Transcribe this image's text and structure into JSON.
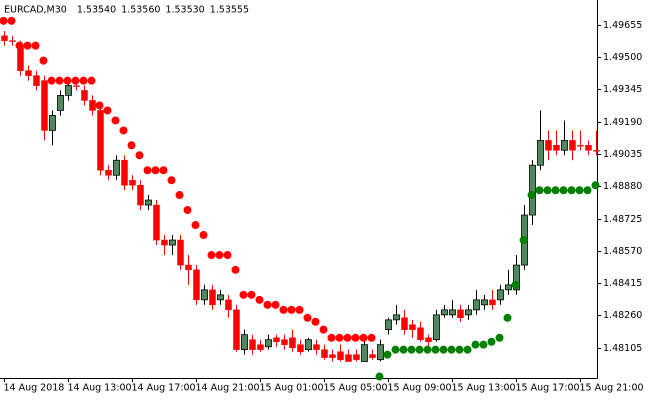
{
  "chart_data": {
    "type": "candlestick",
    "title": "EURCAD,M30",
    "header_quotes": [
      "1.53540",
      "1.53560",
      "1.53530",
      "1.53555"
    ],
    "categories": [
      "14 Aug 2018",
      null,
      null,
      null,
      null,
      null,
      null,
      null,
      "14 Aug 13:00",
      null,
      null,
      null,
      null,
      null,
      null,
      null,
      "14 Aug 17:00",
      null,
      null,
      null,
      null,
      null,
      null,
      null,
      "14 Aug 21:00",
      null,
      null,
      null,
      null,
      null,
      null,
      null,
      "15 Aug 01:00",
      null,
      null,
      null,
      null,
      null,
      null,
      null,
      "15 Aug 05:00",
      null,
      null,
      null,
      null,
      null,
      null,
      null,
      "15 Aug 09:00",
      null,
      null,
      null,
      null,
      null,
      null,
      null,
      "15 Aug 13:00",
      null,
      null,
      null,
      null,
      null,
      null,
      null,
      "15 Aug 17:00",
      null,
      null,
      null,
      null,
      null,
      null,
      null,
      "15 Aug 21:00",
      null,
      null
    ],
    "open": [
      1.49602,
      1.49579,
      1.49555,
      1.49435,
      1.49411,
      1.49387,
      1.49148,
      1.49244,
      1.49316,
      1.49363,
      1.4934,
      1.49292,
      1.49244,
      1.48957,
      1.48933,
      1.49005,
      1.48909,
      1.48885,
      1.4879,
      1.4879,
      1.48622,
      1.48598,
      1.48622,
      1.48502,
      1.48479,
      1.48335,
      1.48383,
      1.48335,
      1.48335,
      1.48287,
      1.48096,
      1.48144,
      1.4812,
      1.4811,
      1.48153,
      1.48144,
      1.48153,
      1.4812,
      1.48096,
      1.4812,
      1.48096,
      1.48072,
      1.48086,
      1.48072,
      1.48072,
      1.48039,
      1.48072,
      1.48048,
      1.48192,
      1.48239,
      1.48249,
      1.48216,
      1.48201,
      1.48153,
      1.48144,
      1.48263,
      1.48263,
      1.48287,
      1.48263,
      1.48287,
      1.48311,
      1.48335,
      1.48335,
      1.48383,
      1.48383,
      1.48502,
      1.48742,
      1.48981,
      1.491,
      1.49077,
      1.49053,
      1.491,
      1.49077,
      1.49077,
      1.49053
    ],
    "high": [
      1.49626,
      1.49602,
      1.49579,
      1.49459,
      1.49435,
      1.49411,
      1.49244,
      1.4934,
      1.49387,
      1.49387,
      1.49363,
      1.49316,
      1.49268,
      1.48981,
      1.49029,
      1.49029,
      1.48933,
      1.48909,
      1.48838,
      1.48814,
      1.48646,
      1.48646,
      1.48646,
      1.4855,
      1.48502,
      1.48407,
      1.48407,
      1.48383,
      1.48359,
      1.48311,
      1.48192,
      1.48168,
      1.48144,
      1.48168,
      1.48168,
      1.48168,
      1.48192,
      1.48144,
      1.48153,
      1.48144,
      1.4812,
      1.48096,
      1.4812,
      1.48096,
      1.48096,
      1.48144,
      1.48096,
      1.48144,
      1.48249,
      1.48311,
      1.48287,
      1.48239,
      1.4823,
      1.48168,
      1.48287,
      1.48311,
      1.48335,
      1.48311,
      1.48311,
      1.48383,
      1.48359,
      1.48383,
      1.48407,
      1.48479,
      1.4855,
      1.4879,
      1.49005,
      1.49244,
      1.49148,
      1.49148,
      1.49196,
      1.49148,
      1.49148,
      1.491,
      1.49148
    ],
    "low": [
      1.49555,
      1.49555,
      1.49411,
      1.49387,
      1.4934,
      1.491,
      1.49077,
      1.4922,
      1.49292,
      1.4934,
      1.49268,
      1.4922,
      1.48933,
      1.48909,
      1.48909,
      1.48861,
      1.48861,
      1.48766,
      1.48766,
      1.48598,
      1.4855,
      1.4855,
      1.48479,
      1.48407,
      1.48311,
      1.48311,
      1.48287,
      1.48311,
      1.48249,
      1.48086,
      1.48072,
      1.48072,
      1.48086,
      1.48096,
      1.4811,
      1.48096,
      1.48086,
      1.48072,
      1.48086,
      1.48072,
      1.48048,
      1.48039,
      1.48039,
      1.48039,
      1.48039,
      1.48039,
      1.48048,
      1.48039,
      1.48168,
      1.48216,
      1.48168,
      1.48153,
      1.48134,
      1.4811,
      1.48134,
      1.48249,
      1.48249,
      1.4823,
      1.48239,
      1.48263,
      1.48287,
      1.48287,
      1.48311,
      1.48359,
      1.48359,
      1.48479,
      1.48694,
      1.48957,
      1.49005,
      1.49029,
      1.49029,
      1.49005,
      1.49053,
      1.49029,
      1.49029
    ],
    "close": [
      1.49579,
      1.49579,
      1.49435,
      1.49411,
      1.49363,
      1.49148,
      1.4922,
      1.49316,
      1.49363,
      1.49363,
      1.49292,
      1.49244,
      1.48957,
      1.48933,
      1.49005,
      1.48885,
      1.48885,
      1.4879,
      1.48814,
      1.48622,
      1.48598,
      1.48622,
      1.48502,
      1.48479,
      1.48335,
      1.48383,
      1.48311,
      1.48359,
      1.48287,
      1.48096,
      1.48168,
      1.48096,
      1.48096,
      1.48144,
      1.48134,
      1.4812,
      1.48105,
      1.48086,
      1.48144,
      1.48096,
      1.48058,
      1.48058,
      1.48048,
      1.48039,
      1.48048,
      1.4812,
      1.48058,
      1.4812,
      1.48239,
      1.48263,
      1.48192,
      1.48192,
      1.48144,
      1.48134,
      1.48263,
      1.48287,
      1.48287,
      1.48249,
      1.48287,
      1.48335,
      1.48335,
      1.48311,
      1.48383,
      1.48407,
      1.48502,
      1.48742,
      1.48981,
      1.491,
      1.49053,
      1.49053,
      1.491,
      1.49053,
      1.49077,
      1.49053,
      1.49053
    ],
    "bull_color": "#4f8a5c",
    "bear_color": "#ff0000",
    "upper_dots": {
      "color": "#ff0000",
      "values": [
        1.49674,
        1.49674,
        1.49555,
        1.49555,
        1.49555,
        1.49483,
        1.49387,
        1.49387,
        1.49387,
        1.49387,
        1.49387,
        1.49387,
        1.49268,
        1.49244,
        1.49196,
        1.49148,
        1.49077,
        1.49029,
        1.48957,
        1.48957,
        1.48957,
        1.48909,
        1.48838,
        1.48766,
        1.48694,
        1.48646,
        1.4855,
        1.4855,
        1.4855,
        1.48479,
        1.48359,
        1.48359,
        1.48335,
        1.48311,
        1.48311,
        1.48287,
        1.48287,
        1.48287,
        1.48249,
        1.4823,
        1.48192,
        1.48153,
        1.48153,
        1.48153,
        1.48153,
        1.48153,
        1.48153,
        null,
        null,
        null,
        null,
        null,
        null,
        null,
        null,
        null,
        null,
        null,
        null,
        null,
        null,
        null,
        null,
        null,
        null,
        null,
        null,
        null,
        null,
        null,
        null,
        null,
        null,
        null,
        null
      ]
    },
    "lower_dots": {
      "color": "#008000",
      "values": [
        null,
        null,
        null,
        null,
        null,
        null,
        null,
        null,
        null,
        null,
        null,
        null,
        null,
        null,
        null,
        null,
        null,
        null,
        null,
        null,
        null,
        null,
        null,
        null,
        null,
        null,
        null,
        null,
        null,
        null,
        null,
        null,
        null,
        null,
        null,
        null,
        null,
        null,
        null,
        null,
        null,
        null,
        null,
        null,
        null,
        null,
        null,
        1.47967,
        1.48072,
        1.48096,
        1.48096,
        1.48096,
        1.48096,
        1.48096,
        1.48096,
        1.48096,
        1.48096,
        1.48096,
        1.48096,
        1.4812,
        1.4812,
        1.48134,
        1.48153,
        1.48249,
        1.48407,
        1.48622,
        1.48838,
        1.48861,
        1.48861,
        1.48861,
        1.48861,
        1.48861,
        1.48861,
        1.48861,
        1.48885
      ]
    },
    "ylim": [
      1.4796,
      1.4975
    ],
    "yticks": [
      {
        "value": 1.49655,
        "label": "1.49655"
      },
      {
        "value": 1.495,
        "label": "1.49500"
      },
      {
        "value": 1.49345,
        "label": "1.49345"
      },
      {
        "value": 1.4919,
        "label": "1.49190"
      },
      {
        "value": 1.49035,
        "label": "1.49035"
      },
      {
        "value": 1.4888,
        "label": "1.48880"
      },
      {
        "value": 1.48725,
        "label": "1.48725"
      },
      {
        "value": 1.4857,
        "label": "1.48570"
      },
      {
        "value": 1.48415,
        "label": "1.48415"
      },
      {
        "value": 1.4826,
        "label": "1.48260"
      },
      {
        "value": 1.48105,
        "label": "1.48105"
      }
    ]
  }
}
